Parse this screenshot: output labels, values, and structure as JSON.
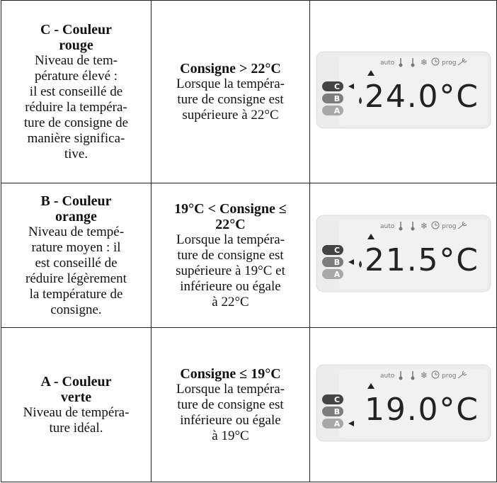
{
  "display_labels": {
    "auto": "auto",
    "prog": "prog",
    "levels": [
      "C",
      "B",
      "A"
    ]
  },
  "table": {
    "rows": [
      {
        "title": [
          "C - Couleur",
          "rouge"
        ],
        "description": [
          "Niveau de tem-",
          "pérature élevé :",
          "il est conseillé de",
          "réduire la tempéra-",
          "ture de consigne de",
          "manière significa-",
          "tive."
        ],
        "condition_title": [
          "Consigne > 22°C"
        ],
        "condition_text": [
          "Lorsque la tempéra-",
          "ture de consigne est",
          "supérieure à 22°C"
        ],
        "display": {
          "value": "24.0°C",
          "active": "C",
          "heating": true
        }
      },
      {
        "title": [
          "B - Couleur",
          "orange"
        ],
        "description": [
          "Niveau de tempé-",
          "rature moyen : il",
          "est conseillé de",
          "réduire légèrement",
          "la température de",
          "consigne."
        ],
        "condition_title": [
          "19°C < Consigne ≤",
          "22°C"
        ],
        "condition_text": [
          "Lorsque la tempéra-",
          "ture de consigne est",
          "supérieure à 19°C et",
          "inférieure ou égale",
          "à 22°C"
        ],
        "display": {
          "value": "21.5°C",
          "active": "B",
          "heating": true
        }
      },
      {
        "title": [
          "A - Couleur",
          "verte"
        ],
        "description": [
          "Niveau de tempéra-",
          "ture idéal."
        ],
        "condition_title": [
          "Consigne ≤ 19°C"
        ],
        "condition_text": [
          "Lorsque la tempéra-",
          "ture de consigne est",
          "inférieure ou égale",
          "à 19°C"
        ],
        "display": {
          "value": "19.0°C",
          "active": "A",
          "heating": false
        }
      }
    ]
  }
}
